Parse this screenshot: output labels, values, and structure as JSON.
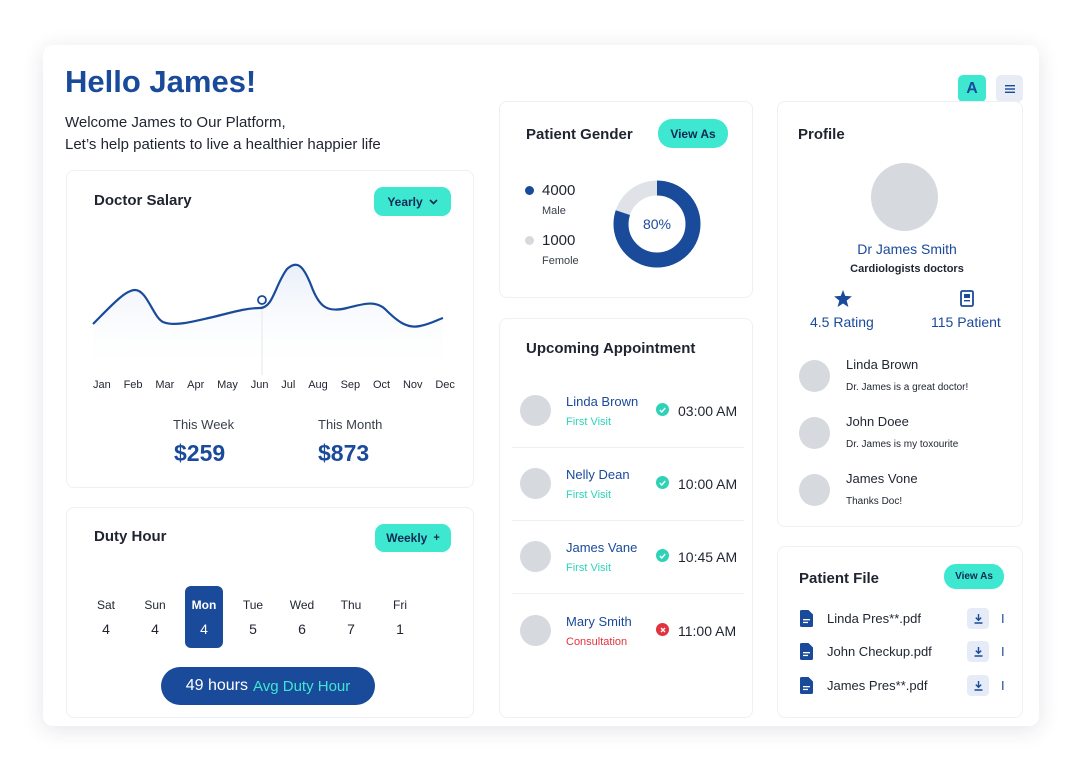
{
  "greeting": {
    "title": "Hello James!",
    "line1": "Welcome James to Our Platform,",
    "line2": "Let’s help patients to live a healthier happier life"
  },
  "topbar": {
    "avatar_letter": "A",
    "menu_icon": "menu-icon"
  },
  "salary": {
    "title": "Doctor Salary",
    "period_label": "Yearly",
    "months": [
      "Jan",
      "Feb",
      "Mar",
      "Apr",
      "May",
      "Jun",
      "Jul",
      "Aug",
      "Sep",
      "Oct",
      "Nov",
      "Dec"
    ],
    "this_week_label": "This Week",
    "this_week_value": "$259",
    "this_month_label": "This Month",
    "this_month_value": "$873"
  },
  "duty": {
    "title": "Duty Hour",
    "period_label": "Weekly",
    "period_icon": "+",
    "days": [
      {
        "name": "Sat",
        "value": "4"
      },
      {
        "name": "Sun",
        "value": "4"
      },
      {
        "name": "Mon",
        "value": "4"
      },
      {
        "name": "Tue",
        "value": "5"
      },
      {
        "name": "Wed",
        "value": "6"
      },
      {
        "name": "Thu",
        "value": "7"
      },
      {
        "name": "Fri",
        "value": "1"
      }
    ],
    "selected_day": "Mon",
    "hours": "49 hours",
    "avg_label": "Avg Duty Hour"
  },
  "gender": {
    "title": "Patient Gender",
    "view_label": "View As",
    "male_count": "4000",
    "male_label": "Male",
    "female_count": "1000",
    "female_label": "Femole",
    "percent_label": "80%",
    "percent": 80
  },
  "appointments": {
    "title": "Upcoming Appointment",
    "items": [
      {
        "name": "Linda Brown",
        "type": "First Visit",
        "time": "03:00 AM",
        "status": "confirmed"
      },
      {
        "name": "Nelly Dean",
        "type": "First Visit",
        "time": "10:00 AM",
        "status": "confirmed"
      },
      {
        "name": "James Vane",
        "type": "First Visit",
        "time": "10:45 AM",
        "status": "confirmed"
      },
      {
        "name": "Mary Smith",
        "type": "Consultation",
        "time": "11:00 AM",
        "status": "cancelled"
      }
    ]
  },
  "profile": {
    "title": "Profile",
    "name": "Dr James Smith",
    "specialty": "Cardiologists doctors",
    "rating": "4.5 Rating",
    "patients": "115 Patient",
    "reviews": [
      {
        "name": "Linda Brown",
        "text": "Dr. James is a great doctor!"
      },
      {
        "name": "John Doee",
        "text": "Dr. James is my toxourite"
      },
      {
        "name": "James Vone",
        "text": "Thanks Doc!"
      }
    ]
  },
  "files": {
    "title": "Patient File",
    "view_label": "View As",
    "items": [
      {
        "name": "Linda Pres**.pdf"
      },
      {
        "name": "John Checkup.pdf"
      },
      {
        "name": "James Pres**.pdf"
      }
    ],
    "extra_glyph": "I"
  },
  "colors": {
    "navy": "#1a4a9a",
    "accent": "#3ee8d0",
    "ring_track": "#dfe2e7",
    "success": "#2ed3b7",
    "danger": "#e0333f"
  }
}
